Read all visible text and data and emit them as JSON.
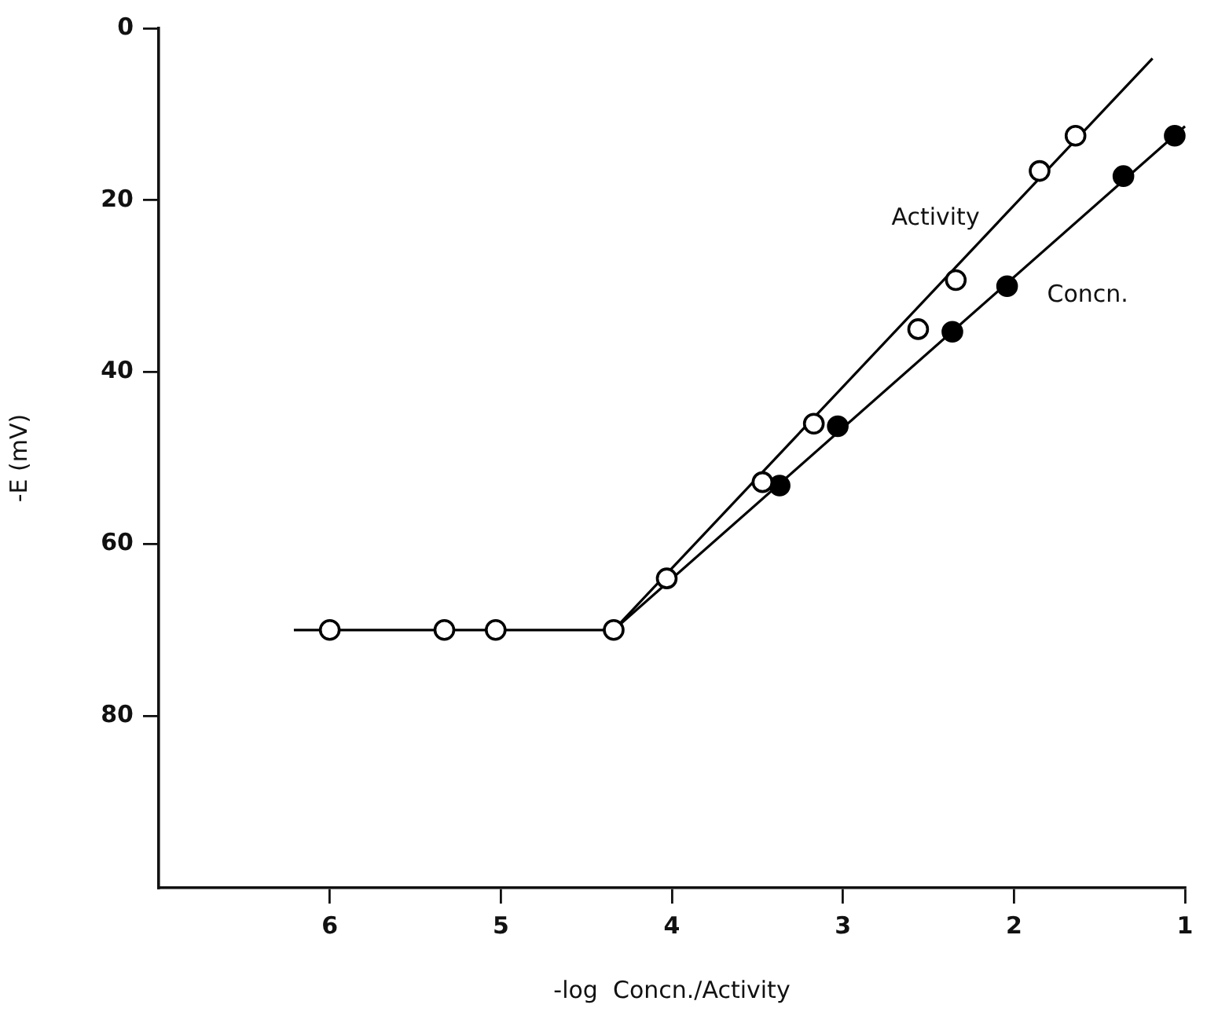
{
  "chart_data": {
    "type": "scatter",
    "xlabel": "-log  Concn./Activity",
    "ylabel": "-E (mV)",
    "xlim": [
      7,
      1
    ],
    "xticks": [
      6,
      5,
      4,
      3,
      2,
      1
    ],
    "ylim": [
      100,
      0
    ],
    "yticks": [
      0,
      20,
      40,
      60,
      80
    ],
    "line_style": "solid",
    "grid": false,
    "legend": false,
    "series": [
      {
        "color": "#ffffff",
        "marker": "circle",
        "x": [
          6.0,
          5.33,
          5.03,
          4.34,
          4.03,
          3.47,
          3.17,
          2.56,
          2.34,
          1.85,
          1.64
        ],
        "values": [
          70,
          70,
          70,
          70,
          64,
          52.8,
          46,
          35,
          29.3,
          16.6,
          12.5
        ]
      },
      {
        "color": "#000000",
        "marker": "circle",
        "x": [
          3.37,
          3.03,
          2.36,
          2.04,
          1.36,
          1.06
        ],
        "values": [
          53.2,
          46.3,
          35.3,
          30,
          17.2,
          12.5
        ]
      },
      {
        "type": "line",
        "name": "Activity",
        "color": "#000000",
        "marker": "none",
        "x": [
          6.21,
          4.34,
          1.19
        ],
        "values": [
          70,
          70,
          3.5
        ]
      },
      {
        "type": "line",
        "name": "Concn.",
        "color": "#000000",
        "marker": "none",
        "x": [
          4.34,
          1
        ],
        "values": [
          70,
          11.4
        ]
      }
    ]
  }
}
